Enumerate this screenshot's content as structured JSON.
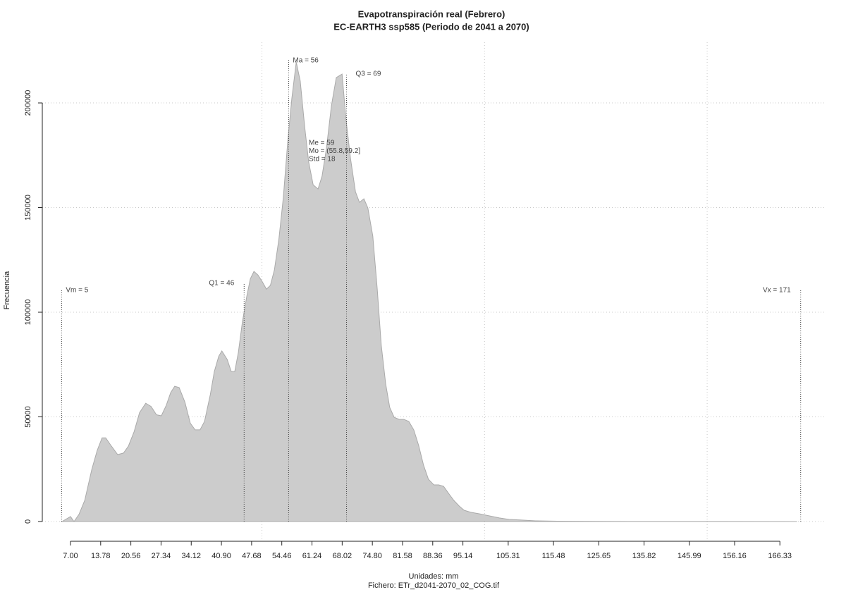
{
  "chart_data": {
    "type": "area",
    "title": "Evapotranspiración real (Febrero)",
    "subtitle": "EC-EARTH3 ssp585 (Periodo de 2041 a 2070)",
    "x_label": "Unidades: mm",
    "caption": "Fichero: ETr_d2041-2070_02_COG.tif",
    "y_label": "Frecuencia",
    "color": "#cccccc",
    "x": [
      5.1,
      7.0,
      7.8,
      8.9,
      10.2,
      11.8,
      13.0,
      14.1,
      14.9,
      16.2,
      17.6,
      18.9,
      20.0,
      21.3,
      22.5,
      23.9,
      25.1,
      26.3,
      27.4,
      28.5,
      29.5,
      30.4,
      31.4,
      32.7,
      33.9,
      35.0,
      36.1,
      37.1,
      38.4,
      39.3,
      40.3,
      41.0,
      42.2,
      43.1,
      43.9,
      44.7,
      45.6,
      46.6,
      47.4,
      48.2,
      49.1,
      50.1,
      51.0,
      51.9,
      52.8,
      53.8,
      54.8,
      55.8,
      56.7,
      57.7,
      58.6,
      59.6,
      60.5,
      61.5,
      62.6,
      63.5,
      64.5,
      65.6,
      66.7,
      68.0,
      68.9,
      69.9,
      71.0,
      71.9,
      72.9,
      73.8,
      74.9,
      75.9,
      76.8,
      77.8,
      78.7,
      79.7,
      80.8,
      81.9,
      83.0,
      84.1,
      85.2,
      86.3,
      87.4,
      88.6,
      89.7,
      90.8,
      91.9,
      93.1,
      94.3,
      95.4,
      96.9,
      98.8,
      101.1,
      103.3,
      105.5,
      108.3,
      111.5,
      116.3,
      125.8,
      170.1
    ],
    "values": [
      0,
      2400,
      0,
      3400,
      10100,
      25000,
      34000,
      40000,
      40000,
      36000,
      32000,
      32700,
      36000,
      43000,
      52000,
      56500,
      55000,
      51000,
      50500,
      55500,
      61600,
      64600,
      64000,
      57000,
      47000,
      43800,
      43800,
      47800,
      60600,
      71700,
      79000,
      81500,
      77400,
      71700,
      71700,
      80800,
      95300,
      107700,
      116000,
      119500,
      117800,
      114500,
      111000,
      112800,
      120200,
      134700,
      154900,
      181800,
      202000,
      219500,
      210400,
      188500,
      171700,
      160900,
      158900,
      165000,
      178500,
      198700,
      212100,
      213800,
      191900,
      173400,
      157600,
      152500,
      154200,
      149800,
      136400,
      111100,
      84200,
      65700,
      54500,
      49800,
      48800,
      48800,
      47800,
      43800,
      36400,
      26900,
      20200,
      17500,
      17500,
      16800,
      13500,
      10100,
      7400,
      5400,
      4400,
      3700,
      2700,
      1700,
      1000,
      700,
      340,
      150,
      50,
      0
    ],
    "xlim": [
      0.67,
      176.43
    ],
    "ylim": [
      -9430,
      228970
    ],
    "xticks": [
      {
        "value": 7.0,
        "label": "7.00"
      },
      {
        "value": 13.78,
        "label": "13.78"
      },
      {
        "value": 20.56,
        "label": "20.56"
      },
      {
        "value": 27.34,
        "label": "27.34"
      },
      {
        "value": 34.12,
        "label": "34.12"
      },
      {
        "value": 40.9,
        "label": "40.90"
      },
      {
        "value": 47.68,
        "label": "47.68"
      },
      {
        "value": 54.46,
        "label": "54.46"
      },
      {
        "value": 61.24,
        "label": "61.24"
      },
      {
        "value": 68.02,
        "label": "68.02"
      },
      {
        "value": 74.8,
        "label": "74.80"
      },
      {
        "value": 81.58,
        "label": "81.58"
      },
      {
        "value": 88.36,
        "label": "88.36"
      },
      {
        "value": 95.14,
        "label": "95.14"
      },
      {
        "value": 105.31,
        "label": "105.31"
      },
      {
        "value": 115.48,
        "label": "115.48"
      },
      {
        "value": 125.65,
        "label": "125.65"
      },
      {
        "value": 135.82,
        "label": "135.82"
      },
      {
        "value": 145.99,
        "label": "145.99"
      },
      {
        "value": 156.16,
        "label": "156.16"
      },
      {
        "value": 166.33,
        "label": "166.33"
      }
    ],
    "yticks": [
      0,
      50000,
      100000,
      150000,
      200000
    ],
    "xgrid": [
      50,
      100,
      150
    ],
    "grid": true,
    "markers": [
      {
        "label": "Vm = 5",
        "value": 5
      },
      {
        "label": "Q1 = 46",
        "value": 46
      },
      {
        "label": "Ma = 56",
        "value": 56
      },
      {
        "label": "Q3 = 69",
        "value": 69
      },
      {
        "label": "Vx = 171",
        "value": 171
      }
    ],
    "stats": [
      "Me = 59",
      "Mo = (55.8,59.2]",
      "Std = 18"
    ]
  }
}
